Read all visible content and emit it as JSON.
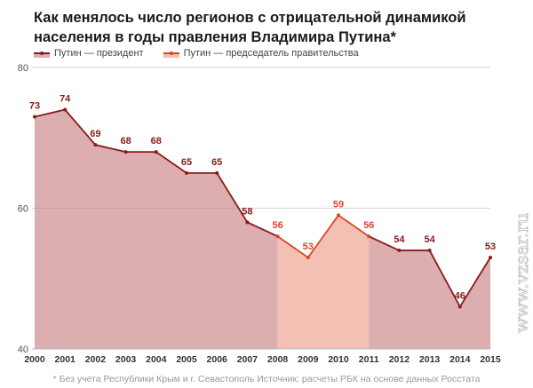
{
  "chart_data": {
    "type": "area",
    "title": "Как менялось число регионов с отрицательной динамикой населения в годы правления Владимира Путина*",
    "xlabel": "",
    "ylabel": "",
    "ylim": [
      40,
      80
    ],
    "yticks": [
      "40",
      "60",
      "80"
    ],
    "grid": true,
    "legend_position": "top-left",
    "x": [
      "2000",
      "2001",
      "2002",
      "2003",
      "2004",
      "2005",
      "2006",
      "2007",
      "2008",
      "2009",
      "2010",
      "2011",
      "2012",
      "2013",
      "2014",
      "2015"
    ],
    "values": [
      73,
      74,
      69,
      68,
      68,
      65,
      65,
      58,
      56,
      53,
      59,
      56,
      54,
      54,
      46,
      53
    ],
    "labels": [
      "73",
      "74",
      "69",
      "68",
      "68",
      "65",
      "65",
      "58",
      "56",
      "53",
      "59",
      "56",
      "54",
      "54",
      "46",
      "53"
    ],
    "series": [
      {
        "name": "Путин — президент",
        "ranges": [
          [
            "2000",
            "2008"
          ],
          [
            "2011",
            "2015"
          ]
        ],
        "color": "#8b1a1a",
        "fill": "#dcaeb0"
      },
      {
        "name": "Путин — председатель правительства",
        "ranges": [
          [
            "2008",
            "2011"
          ]
        ],
        "color": "#d9472b",
        "fill": "#f3c0b4"
      }
    ],
    "footnote": "* Без учета Республики Крым и г. Севастополь Источник: расчеты РБК на основе данных Росстата"
  },
  "watermark": "www.vzsar.ru"
}
